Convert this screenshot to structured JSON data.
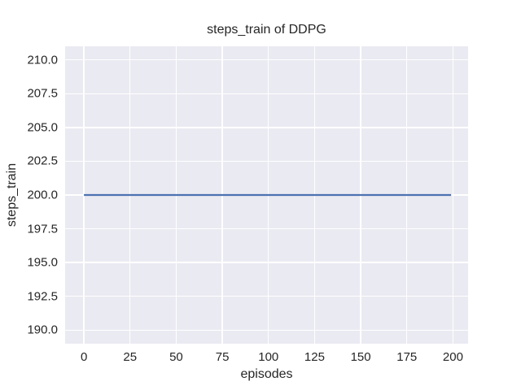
{
  "chart_data": {
    "type": "line",
    "title": "steps_train of DDPG",
    "xlabel": "episodes",
    "ylabel": "steps_train",
    "x_tick_values": [
      0,
      25,
      50,
      75,
      100,
      125,
      150,
      175,
      200
    ],
    "x_tick_labels": [
      "0",
      "25",
      "50",
      "75",
      "100",
      "125",
      "150",
      "175",
      "200"
    ],
    "y_tick_values": [
      190.0,
      192.5,
      195.0,
      197.5,
      200.0,
      202.5,
      205.0,
      207.5,
      210.0
    ],
    "y_tick_labels": [
      "190.0",
      "192.5",
      "195.0",
      "197.5",
      "200.0",
      "202.5",
      "205.0",
      "207.5",
      "210.0"
    ],
    "xlim": [
      -10.2,
      208.2
    ],
    "ylim": [
      189,
      211
    ],
    "grid": true,
    "legend": "none",
    "series": [
      {
        "name": "steps_train",
        "color": "#4c72b0",
        "x": [
          0,
          199
        ],
        "y": [
          200,
          200
        ],
        "description": "constant value 200 from episode 0 to episode 199"
      }
    ],
    "style": {
      "plot_background": "#eaeaf2",
      "grid_color": "#ffffff",
      "text_color": "#262626",
      "figure_background": "#ffffff",
      "line_width": 2.3
    }
  }
}
